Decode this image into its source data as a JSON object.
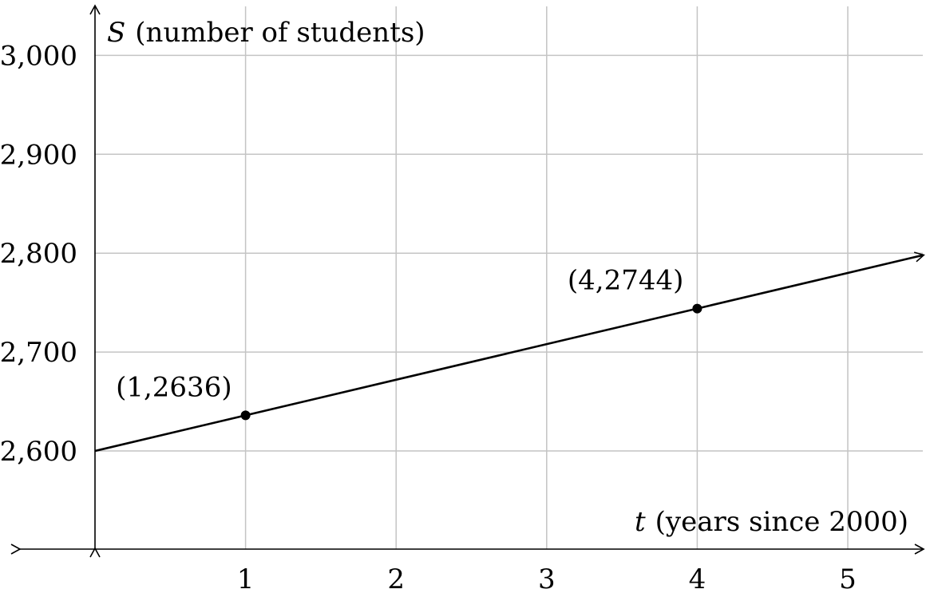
{
  "chart_data": {
    "type": "line",
    "x_axis": {
      "variable": "t",
      "label": "(years since 2000)",
      "ticks": [
        1,
        2,
        3,
        4,
        5
      ],
      "range": [
        -0.5,
        5.5
      ]
    },
    "y_axis": {
      "variable": "S",
      "label": "(number of students)",
      "ticks": [
        2600,
        2700,
        2800,
        2900,
        3000
      ],
      "tick_labels": [
        "2,600",
        "2,700",
        "2,800",
        "2,900",
        "3,000"
      ],
      "range": [
        2500,
        3050
      ]
    },
    "grid": true,
    "series": [
      {
        "line": {
          "x": [
            0,
            5.5
          ],
          "y": [
            2600,
            2798
          ]
        },
        "points": [
          {
            "x": 1,
            "y": 2636,
            "label": "(1,2636)"
          },
          {
            "x": 4,
            "y": 2744,
            "label": "(4,2744)"
          }
        ]
      }
    ]
  }
}
